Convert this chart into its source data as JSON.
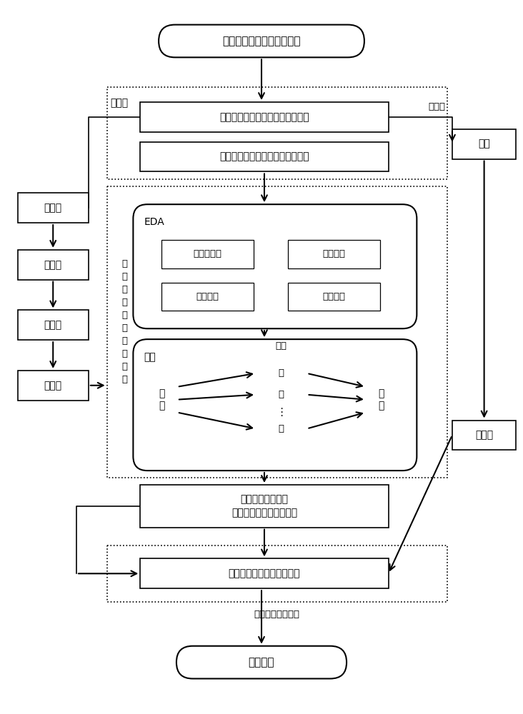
{
  "bg_color": "#ffffff",
  "init_text": "初始化故障诊断与排除系统",
  "labeled_text": "有标签的盾构机故障记录文本数据",
  "unlabeled_text": "无标签的盾构机故障记录文本数据",
  "step1_text": "步骤一",
  "step2_text": "步骤二",
  "step3_text": "步骤三",
  "step4_text": "步骤四",
  "eda_label": "EDA",
  "eda_sub1": "同义词替换",
  "eda_sub2": "随机删除",
  "eda_sub3": "随机交换",
  "eda_sub4": "随机插入",
  "bt_label": "回译",
  "left_cn": "中\n文",
  "right_cn": "中\n文",
  "foreign_label": "外文",
  "eng": "英",
  "fra": "法",
  "jpn": "日",
  "dots": "⋮",
  "enhanced_text": "增强后的无标签的\n盾构机故障记录文本数据",
  "corpus_text": "盾构机故障记录文本语料库",
  "fault_text": "故障类型",
  "biaoji_text": "标签",
  "dabiaoji_text": "打标签",
  "zhaibiaoji_text": "摘标签",
  "caijiduan_text": "采集端",
  "step5_text": "步\n骤\n五\n的\n混\n合\n数\n据\n增\n强",
  "gzlx_text": "盾构机故障类型库"
}
